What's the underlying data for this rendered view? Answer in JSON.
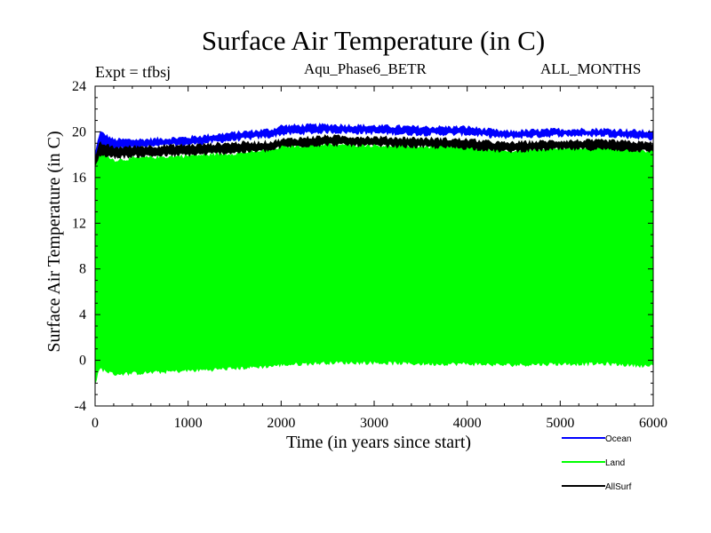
{
  "chart_data": {
    "type": "line",
    "title": "Surface Air Temperature (in C)",
    "experiment": "Expt = tfbsj",
    "subtitle": "Aqu_Phase6_BETR",
    "period": "ALL_MONTHS",
    "xlabel": "Time (in years since start)",
    "ylabel": "Surface Air Temperature (in C)",
    "xlim": [
      0,
      6000
    ],
    "ylim": [
      -4,
      24
    ],
    "xticks": [
      0,
      1000,
      2000,
      3000,
      4000,
      5000,
      6000
    ],
    "yticks": [
      -4,
      0,
      4,
      8,
      12,
      16,
      20,
      24
    ],
    "series": [
      {
        "name": "Ocean",
        "color": "#0000ff",
        "x": [
          0,
          50,
          200,
          500,
          1000,
          1500,
          1900,
          2000,
          2500,
          3000,
          3500,
          4000,
          4400,
          5000,
          5500,
          6000
        ],
        "upper": [
          18.0,
          20.0,
          19.3,
          19.3,
          19.5,
          19.9,
          20.2,
          20.5,
          20.6,
          20.5,
          20.4,
          20.4,
          20.0,
          20.2,
          20.2,
          20.0
        ],
        "lower": [
          17.5,
          18.8,
          18.6,
          18.7,
          18.9,
          19.3,
          19.6,
          19.8,
          20.0,
          19.9,
          19.8,
          19.8,
          19.5,
          19.7,
          19.7,
          19.4
        ]
      },
      {
        "name": "Land",
        "color": "#00ff00",
        "x": [
          0,
          50,
          200,
          500,
          1000,
          1500,
          1900,
          2000,
          2500,
          3000,
          3500,
          4000,
          4400,
          5000,
          5500,
          6000
        ],
        "upper": [
          17.0,
          18.5,
          17.5,
          17.7,
          17.9,
          18.1,
          18.4,
          18.7,
          18.9,
          18.8,
          18.7,
          18.6,
          18.3,
          18.6,
          18.6,
          18.3
        ],
        "lower": [
          -2.0,
          -0.7,
          -1.2,
          -1.1,
          -0.9,
          -0.7,
          -0.5,
          -0.4,
          -0.2,
          -0.2,
          -0.3,
          -0.3,
          -0.4,
          -0.3,
          -0.3,
          -0.5
        ]
      },
      {
        "name": "AllSurf",
        "color": "#000000",
        "x": [
          0,
          50,
          200,
          500,
          1000,
          1500,
          1900,
          2000,
          2500,
          3000,
          3500,
          4000,
          4400,
          5000,
          5500,
          6000
        ],
        "upper": [
          17.5,
          19.0,
          18.6,
          18.7,
          18.8,
          19.0,
          19.1,
          19.3,
          19.6,
          19.5,
          19.4,
          19.3,
          19.0,
          19.2,
          19.2,
          19.0
        ],
        "lower": [
          17.0,
          18.0,
          17.8,
          17.9,
          18.0,
          18.2,
          18.4,
          18.7,
          18.9,
          18.8,
          18.7,
          18.6,
          18.3,
          18.5,
          18.5,
          18.3
        ]
      }
    ],
    "legend_position": "bottom-right"
  }
}
